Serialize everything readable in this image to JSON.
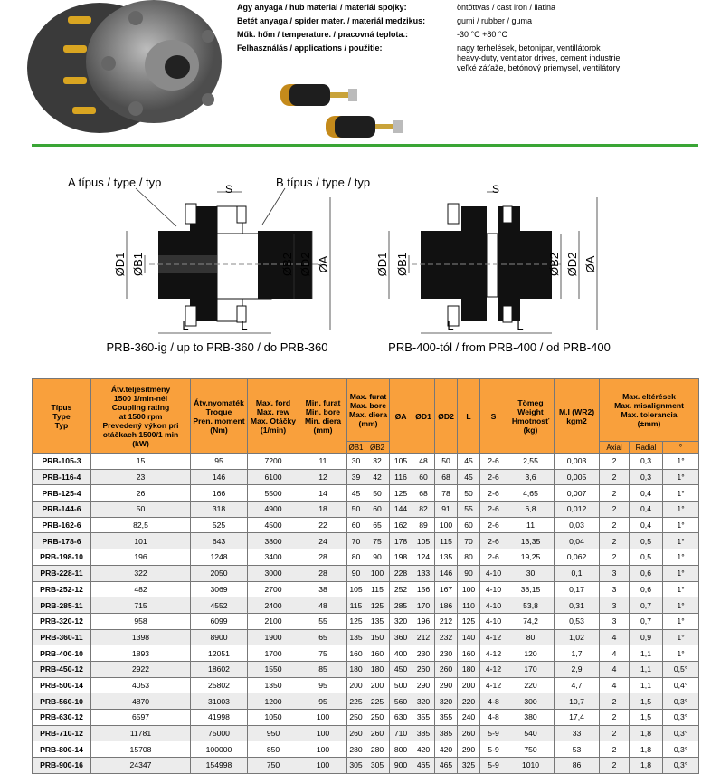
{
  "specs": [
    {
      "label": "Agy anyaga / hub material / materiál spojky:",
      "value": [
        "öntöttvas / cast iron / liatina"
      ]
    },
    {
      "label": "Betét anyaga / spider mater. / materiál medzikus:",
      "value": [
        "gumi / rubber / guma"
      ]
    },
    {
      "label": "Műk. hőm / temperature. / pracovná teplota.:",
      "value": [
        "-30 °C +80 °C"
      ]
    },
    {
      "label": "Felhasználás / applications / použitie:",
      "value": [
        "nagy terhelések, betonipar, ventillátorok",
        "heavy-duty, ventiator drives, cement industrie",
        "veľké záťaže, betónový priemysel, ventilátory"
      ]
    }
  ],
  "diagrams": {
    "type_a": "A típus / type / typ",
    "type_b": "B típus / type / typ",
    "left": {
      "caption": "PRB-360-ig / up to PRB-360 / do PRB-360",
      "s": "S",
      "d1": "ØD1",
      "b1": "ØB1",
      "b2": "ØB2",
      "d2": "ØD2",
      "a": "ØA",
      "l1": "L",
      "l2": "L"
    },
    "right": {
      "caption": "PRB-400-tól / from PRB-400 / od PRB-400",
      "s": "S",
      "d1": "ØD1",
      "b1": "ØB1",
      "b2": "ØB2",
      "d2": "ØD2",
      "a": "ØA",
      "l1": "L",
      "l2": "L"
    }
  },
  "table": {
    "header": [
      {
        "lines": [
          "Típus",
          "Type",
          "Typ"
        ],
        "span": 1
      },
      {
        "lines": [
          "Átv.teljesítmény",
          "1500 1/min-nél",
          "Coupling rating",
          "at 1500 rpm",
          "Prevedený výkon pri",
          "otáčkach 1500/1 min",
          "(kW)"
        ],
        "span": 1
      },
      {
        "lines": [
          "Átv.nyomaték",
          "Troque",
          "Pren. moment",
          "(Nm)"
        ],
        "span": 1
      },
      {
        "lines": [
          "Max. ford",
          "Max. rew",
          "Max. Otáčky",
          "(1/min)"
        ],
        "span": 1
      },
      {
        "lines": [
          "Min. furat",
          "Min. bore",
          "Min. diera",
          "(mm)"
        ],
        "span": 1
      },
      {
        "lines": [
          "Max. furat",
          "Max. bore",
          "Max. diera",
          "(mm)"
        ],
        "span": 2
      },
      {
        "lines": [
          "ØA"
        ],
        "span": 1
      },
      {
        "lines": [
          "ØD1"
        ],
        "span": 1
      },
      {
        "lines": [
          "ØD2"
        ],
        "span": 1
      },
      {
        "lines": [
          "L"
        ],
        "span": 1
      },
      {
        "lines": [
          "S"
        ],
        "span": 1
      },
      {
        "lines": [
          "Tömeg",
          "Weight",
          "Hmotnosť",
          "(kg)"
        ],
        "span": 1
      },
      {
        "lines": [
          "M.I (WR2)",
          "kgm2"
        ],
        "span": 1
      },
      {
        "lines": [
          "Max. eltérések",
          "Max. misalignment",
          "Max. tolerancia",
          "(±mm)"
        ],
        "span": 3
      }
    ],
    "subheader": [
      "ØB1",
      "ØB2",
      "Axial",
      "Radial",
      "°"
    ],
    "rows": [
      [
        "PRB-105-3",
        "15",
        "95",
        "7200",
        "11",
        "30",
        "32",
        "105",
        "48",
        "50",
        "45",
        "2-6",
        "2,55",
        "0,003",
        "2",
        "0,3",
        "1°"
      ],
      [
        "PRB-116-4",
        "23",
        "146",
        "6100",
        "12",
        "39",
        "42",
        "116",
        "60",
        "68",
        "45",
        "2-6",
        "3,6",
        "0,005",
        "2",
        "0,3",
        "1°"
      ],
      [
        "PRB-125-4",
        "26",
        "166",
        "5500",
        "14",
        "45",
        "50",
        "125",
        "68",
        "78",
        "50",
        "2-6",
        "4,65",
        "0,007",
        "2",
        "0,4",
        "1°"
      ],
      [
        "PRB-144-6",
        "50",
        "318",
        "4900",
        "18",
        "50",
        "60",
        "144",
        "82",
        "91",
        "55",
        "2-6",
        "6,8",
        "0,012",
        "2",
        "0,4",
        "1°"
      ],
      [
        "PRB-162-6",
        "82,5",
        "525",
        "4500",
        "22",
        "60",
        "65",
        "162",
        "89",
        "100",
        "60",
        "2-6",
        "11",
        "0,03",
        "2",
        "0,4",
        "1°"
      ],
      [
        "PRB-178-6",
        "101",
        "643",
        "3800",
        "24",
        "70",
        "75",
        "178",
        "105",
        "115",
        "70",
        "2-6",
        "13,35",
        "0,04",
        "2",
        "0,5",
        "1°"
      ],
      [
        "PRB-198-10",
        "196",
        "1248",
        "3400",
        "28",
        "80",
        "90",
        "198",
        "124",
        "135",
        "80",
        "2-6",
        "19,25",
        "0,062",
        "2",
        "0,5",
        "1°"
      ],
      [
        "PRB-228-11",
        "322",
        "2050",
        "3000",
        "28",
        "90",
        "100",
        "228",
        "133",
        "146",
        "90",
        "4-10",
        "30",
        "0,1",
        "3",
        "0,6",
        "1°"
      ],
      [
        "PRB-252-12",
        "482",
        "3069",
        "2700",
        "38",
        "105",
        "115",
        "252",
        "156",
        "167",
        "100",
        "4-10",
        "38,15",
        "0,17",
        "3",
        "0,6",
        "1°"
      ],
      [
        "PRB-285-11",
        "715",
        "4552",
        "2400",
        "48",
        "115",
        "125",
        "285",
        "170",
        "186",
        "110",
        "4-10",
        "53,8",
        "0,31",
        "3",
        "0,7",
        "1°"
      ],
      [
        "PRB-320-12",
        "958",
        "6099",
        "2100",
        "55",
        "125",
        "135",
        "320",
        "196",
        "212",
        "125",
        "4-10",
        "74,2",
        "0,53",
        "3",
        "0,7",
        "1°"
      ],
      [
        "PRB-360-11",
        "1398",
        "8900",
        "1900",
        "65",
        "135",
        "150",
        "360",
        "212",
        "232",
        "140",
        "4-12",
        "80",
        "1,02",
        "4",
        "0,9",
        "1°"
      ],
      [
        "PRB-400-10",
        "1893",
        "12051",
        "1700",
        "75",
        "160",
        "160",
        "400",
        "230",
        "230",
        "160",
        "4-12",
        "120",
        "1,7",
        "4",
        "1,1",
        "1°"
      ],
      [
        "PRB-450-12",
        "2922",
        "18602",
        "1550",
        "85",
        "180",
        "180",
        "450",
        "260",
        "260",
        "180",
        "4-12",
        "170",
        "2,9",
        "4",
        "1,1",
        "0,5°"
      ],
      [
        "PRB-500-14",
        "4053",
        "25802",
        "1350",
        "95",
        "200",
        "200",
        "500",
        "290",
        "290",
        "200",
        "4-12",
        "220",
        "4,7",
        "4",
        "1,1",
        "0,4°"
      ],
      [
        "PRB-560-10",
        "4870",
        "31003",
        "1200",
        "95",
        "225",
        "225",
        "560",
        "320",
        "320",
        "220",
        "4-8",
        "300",
        "10,7",
        "2",
        "1,5",
        "0,3°"
      ],
      [
        "PRB-630-12",
        "6597",
        "41998",
        "1050",
        "100",
        "250",
        "250",
        "630",
        "355",
        "355",
        "240",
        "4-8",
        "380",
        "17,4",
        "2",
        "1,5",
        "0,3°"
      ],
      [
        "PRB-710-12",
        "11781",
        "75000",
        "950",
        "100",
        "260",
        "260",
        "710",
        "385",
        "385",
        "260",
        "5-9",
        "540",
        "33",
        "2",
        "1,8",
        "0,3°"
      ],
      [
        "PRB-800-14",
        "15708",
        "100000",
        "850",
        "100",
        "280",
        "280",
        "800",
        "420",
        "420",
        "290",
        "5-9",
        "750",
        "53",
        "2",
        "1,8",
        "0,3°"
      ],
      [
        "PRB-900-16",
        "24347",
        "154998",
        "750",
        "100",
        "305",
        "305",
        "900",
        "465",
        "465",
        "325",
        "5-9",
        "1010",
        "86",
        "2",
        "1,8",
        "0,3°"
      ]
    ]
  }
}
